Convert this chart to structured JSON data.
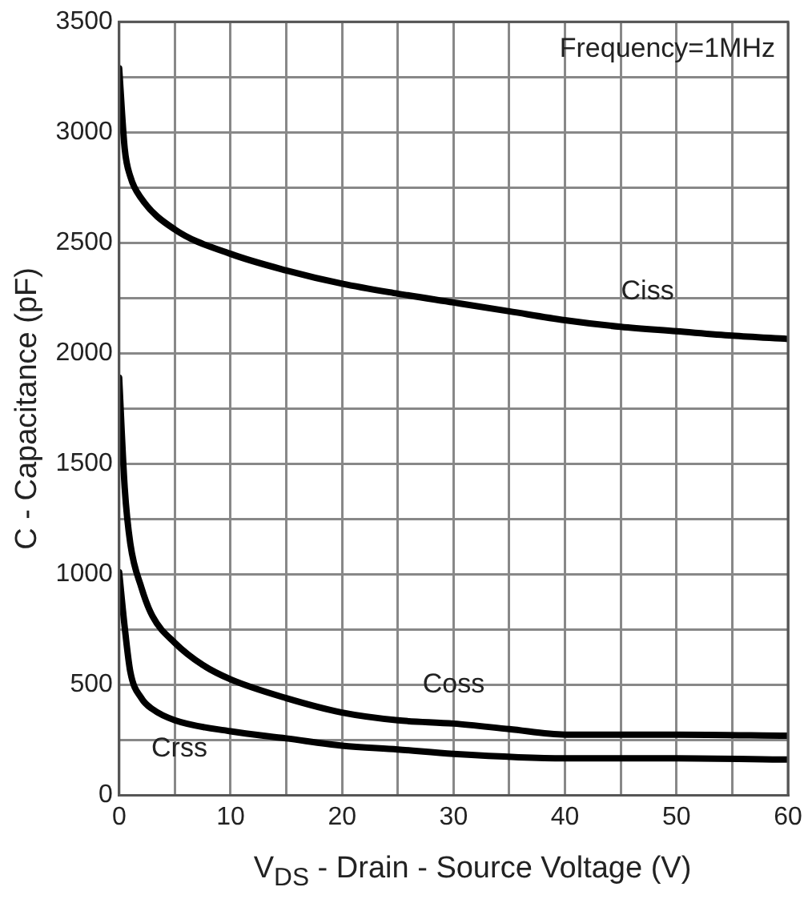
{
  "chart_data": {
    "type": "line",
    "xlabel": "V$_{DS}$ - Drain - Source Voltage (V)",
    "ylabel": "C - Capacitance (pF)",
    "xlim": [
      0,
      60
    ],
    "xticks": [
      0,
      {
        "value": 5,
        "label": null
      },
      10,
      {
        "value": 15,
        "label": null
      },
      20,
      {
        "value": 25,
        "label": null
      },
      30,
      {
        "value": 35,
        "label": null
      },
      40,
      {
        "value": 45,
        "label": null
      },
      50,
      {
        "value": 55,
        "label": null
      },
      60
    ],
    "ylim": [
      0,
      3500
    ],
    "yticks": [
      0,
      {
        "value": 250,
        "label": null
      },
      500,
      {
        "value": 750,
        "label": null
      },
      1000,
      {
        "value": 1250,
        "label": null
      },
      1500,
      {
        "value": 1750,
        "label": null
      },
      2000,
      {
        "value": 2250,
        "label": null
      },
      2500,
      {
        "value": 2750,
        "label": null
      },
      3000,
      {
        "value": 3250,
        "label": null
      },
      3500
    ],
    "grid": true,
    "legend": false,
    "marker": "none",
    "line_style": "solid",
    "series": [
      {
        "name": "Ciss",
        "color": "#000000",
        "x": [
          0,
          0.5,
          1,
          2,
          5,
          10,
          15,
          20,
          25,
          30,
          35,
          40,
          45,
          50,
          55,
          60
        ],
        "values": [
          3290,
          2925,
          2800,
          2700,
          2560,
          2450,
          2375,
          2315,
          2270,
          2230,
          2190,
          2150,
          2120,
          2100,
          2080,
          2065
        ]
      },
      {
        "name": "Coss",
        "color": "#000000",
        "x": [
          0,
          0.5,
          1,
          2,
          3,
          5,
          7.5,
          10,
          15,
          20,
          25,
          30,
          35,
          40,
          50,
          60
        ],
        "values": [
          1890,
          1390,
          1140,
          940,
          810,
          690,
          590,
          525,
          440,
          375,
          340,
          325,
          300,
          275,
          275,
          270
        ]
      },
      {
        "name": "Crss",
        "color": "#000000",
        "x": [
          0,
          0.5,
          1,
          2,
          3,
          5,
          10,
          15,
          20,
          25,
          30,
          40,
          50,
          60
        ],
        "values": [
          1010,
          760,
          560,
          440,
          390,
          340,
          290,
          258,
          225,
          208,
          188,
          168,
          168,
          162
        ]
      }
    ],
    "annotations": [
      "Frequency=1MHz"
    ]
  }
}
